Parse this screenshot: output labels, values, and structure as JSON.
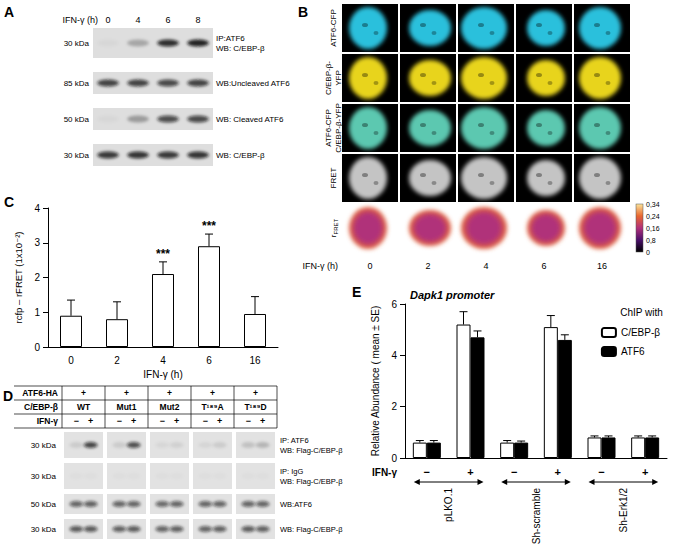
{
  "figure": {
    "panel_A": {
      "letter": "A",
      "condition": "IFN-γ (h)",
      "lanes": [
        "0",
        "4",
        "6",
        "8"
      ],
      "rows": [
        {
          "size": "30 kDa",
          "label": [
            "IP:ATF6",
            "WB: C/EBP-β"
          ],
          "bands": [
            0.03,
            0.25,
            0.85,
            0.9
          ]
        },
        {
          "size": "85 kDa",
          "label": [
            "WB:Uncleaved ATF6"
          ],
          "bands": [
            0.75,
            0.75,
            0.72,
            0.75
          ]
        },
        {
          "size": "50 kDa",
          "label": [
            "WB: Cleaved ATF6"
          ],
          "bands": [
            0.03,
            0.3,
            0.7,
            0.72
          ]
        },
        {
          "size": "30 kDa",
          "label": [
            "WB: C/EBP-β"
          ],
          "bands": [
            0.8,
            0.82,
            0.8,
            0.82
          ]
        }
      ]
    },
    "panel_B": {
      "letter": "B",
      "condition": "IFN-γ (h)",
      "columns": [
        "0",
        "2",
        "4",
        "6",
        "16"
      ],
      "rows": [
        {
          "label": [
            "ATF6-CFP"
          ],
          "color": "#2cc0dc"
        },
        {
          "label": [
            "C/EBP-β-",
            "YFP"
          ],
          "color": "#e8d41c"
        },
        {
          "label": [
            "ATF6-CFP",
            "C/EBP-β-YFP"
          ],
          "color": "#5cc8b0"
        },
        {
          "label": [
            "FRET"
          ],
          "color": "#c4c4c4"
        },
        {
          "label": [
            "r"
          ],
          "label_sub": "FRET",
          "colormap": true
        }
      ],
      "colormap": [
        "#000000",
        "#4b0f6b",
        "#b0307a",
        "#e8672f",
        "#fbe39a"
      ],
      "colorbar_labels": [
        "0,34",
        "0,24",
        "0,16",
        "0,8",
        "0"
      ]
    },
    "panel_D": {
      "letter": "D",
      "header_rows": [
        {
          "label": "ATF6-HA",
          "cells": [
            "+",
            "+",
            "+",
            "+",
            "+"
          ]
        },
        {
          "label": "C/EBP-β",
          "cells": [
            "WT",
            "Mut1",
            "Mut2",
            "T¹⁸⁹A",
            "T¹⁸⁹D"
          ]
        }
      ],
      "condition": "IFN-γ",
      "lane_signs": [
        "−",
        "+"
      ],
      "blots": [
        {
          "size": "30 kDa",
          "label": [
            "IP: ATF6",
            "WB: Flag-C/EBP-β"
          ],
          "bands": [
            [
              0.1,
              0.75
            ],
            [
              0.1,
              0.7
            ],
            [
              0.05,
              0.08
            ],
            [
              0.06,
              0.1
            ],
            [
              0.15,
              0.2
            ]
          ]
        },
        {
          "size": "30 kDa",
          "label": [
            "IP: IgG",
            "WB: Flag-C/EBP-β"
          ],
          "bands": [
            [
              0.02,
              0.02
            ],
            [
              0.02,
              0.02
            ],
            [
              0.02,
              0.02
            ],
            [
              0.02,
              0.02
            ],
            [
              0.02,
              0.02
            ]
          ]
        },
        {
          "size": "50 kDa",
          "label": [
            "WB:ATF6"
          ],
          "bands": [
            [
              0.6,
              0.62
            ],
            [
              0.6,
              0.6
            ],
            [
              0.58,
              0.6
            ],
            [
              0.6,
              0.6
            ],
            [
              0.6,
              0.6
            ]
          ]
        },
        {
          "size": "30 kDa",
          "label": [
            "WB: Flag-C/EBP-β"
          ],
          "bands": [
            [
              0.65,
              0.65
            ],
            [
              0.62,
              0.64
            ],
            [
              0.6,
              0.62
            ],
            [
              0.6,
              0.62
            ],
            [
              0.64,
              0.62
            ]
          ]
        }
      ]
    }
  },
  "chart_data": [
    {
      "type": "bar",
      "panel_label": "C",
      "categories": [
        "0",
        "2",
        "4",
        "6",
        "16"
      ],
      "values": [
        0.9,
        0.8,
        2.1,
        2.9,
        0.95
      ],
      "errors": [
        0.45,
        0.5,
        0.35,
        0.35,
        0.5
      ],
      "color": "#ffffff",
      "x_label": "IFN-γ (h)",
      "y_label": "rcfp – rFRET (1x10⁻²)",
      "ylim": [
        0,
        4
      ],
      "yticks": [
        0,
        1,
        2,
        3,
        4
      ],
      "grid": false,
      "annotations": [
        {
          "category": "4",
          "text": "***"
        },
        {
          "category": "6",
          "text": "***"
        }
      ]
    },
    {
      "type": "bar",
      "panel_label": "E",
      "title": "Dapk1 promoter",
      "categories": [
        "−",
        "+",
        "−",
        "+",
        "−",
        "+"
      ],
      "groups": [
        "pLKO.1",
        "Sh-scramble",
        "Sh-Erk1/2"
      ],
      "condition_label": "IFN-γ",
      "y_label": "Relative Abundance ( mean ± SE)",
      "legend_title": "ChIP with",
      "legend": "top-right",
      "series": [
        {
          "name": "C/EBP-β",
          "color": "#ffffff",
          "values": [
            0.6,
            5.2,
            0.6,
            5.1,
            0.8,
            0.8
          ],
          "errors": [
            0.08,
            0.5,
            0.08,
            0.45,
            0.06,
            0.06
          ]
        },
        {
          "name": "ATF6",
          "color": "#000000",
          "values": [
            0.6,
            4.7,
            0.6,
            4.6,
            0.8,
            0.8
          ],
          "errors": [
            0.08,
            0.25,
            0.06,
            0.2,
            0.06,
            0.06
          ]
        }
      ],
      "ylim": [
        0,
        6
      ],
      "yticks": [
        0,
        2,
        4,
        6
      ],
      "grid": false
    }
  ]
}
